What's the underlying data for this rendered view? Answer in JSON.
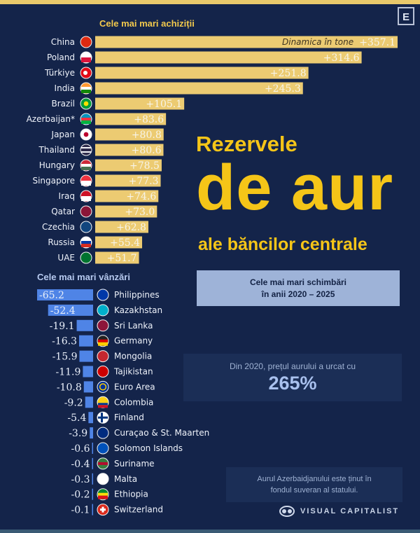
{
  "header": {
    "corner_badge": "E"
  },
  "titles": {
    "line1": "Rezervele",
    "line2": "de aur",
    "line3": "ale băncilor centrale"
  },
  "info_box": {
    "line1": "Cele mai mari schimbări",
    "line2": "în anii 2020 – 2025"
  },
  "price_box": {
    "text": "Din 2020, prețul aurului a urcat cu",
    "value": "265%"
  },
  "footnote": {
    "line1": "Aurul Azerbaidjanului este ținut în",
    "line2": "fondul suveran al statului."
  },
  "brand": {
    "name": "VISUAL CAPITALIST"
  },
  "colors": {
    "background": "#14244a",
    "gold": "#f5c518",
    "buy_bar": "#eccb72",
    "sell_bar": "#4f84e6"
  },
  "chart_data": [
    {
      "type": "bar",
      "orientation": "horizontal",
      "title": "Cele mai mari achiziții",
      "annotation": "Dinamica în tone",
      "unit": "tonnes",
      "categories": [
        "China",
        "Poland",
        "Türkiye",
        "India",
        "Brazil",
        "Azerbaijan*",
        "Japan",
        "Thailand",
        "Hungary",
        "Singapore",
        "Iraq",
        "Qatar",
        "Czechia",
        "Russia",
        "UAE"
      ],
      "values": [
        357.1,
        314.6,
        251.8,
        245.3,
        105.1,
        83.6,
        80.8,
        80.6,
        78.5,
        77.3,
        74.6,
        73.0,
        62.8,
        55.4,
        51.7
      ],
      "labels": [
        "+357.1",
        "+314.6",
        "+251.8",
        "+245.3",
        "+105.1",
        "+83.6",
        "+80.8",
        "+80.6",
        "+78.5",
        "+77.3",
        "+74.6",
        "+73.0",
        "+62.8",
        "+55.4",
        "+51.7"
      ],
      "flag_icons": [
        "cn-flag-icon",
        "pl-flag-icon",
        "tr-flag-icon",
        "in-flag-icon",
        "br-flag-icon",
        "az-flag-icon",
        "jp-flag-icon",
        "th-flag-icon",
        "hu-flag-icon",
        "sg-flag-icon",
        "iq-flag-icon",
        "qa-flag-icon",
        "cz-flag-icon",
        "ru-flag-icon",
        "ae-flag-icon"
      ],
      "xlim": [
        0,
        357.1
      ]
    },
    {
      "type": "bar",
      "orientation": "horizontal",
      "title": "Cele mai mari vânzări",
      "unit": "tonnes",
      "categories": [
        "Philippines",
        "Kazakhstan",
        "Sri Lanka",
        "Germany",
        "Mongolia",
        "Tajikistan",
        "Euro Area",
        "Colombia",
        "Finland",
        "Curaçao & St. Maarten",
        "Solomon Islands",
        "Suriname",
        "Malta",
        "Ethiopia",
        "Switzerland"
      ],
      "values": [
        -65.2,
        -52.4,
        -19.1,
        -16.3,
        -15.9,
        -11.9,
        -10.8,
        -9.2,
        -5.4,
        -3.9,
        -0.6,
        -0.4,
        -0.3,
        -0.2,
        -0.1
      ],
      "labels": [
        "-65.2",
        "-52.4",
        "-19.1",
        "-16.3",
        "-15.9",
        "-11.9",
        "-10.8",
        "-9.2",
        "-5.4",
        "-3.9",
        "-0.6",
        "-0.4",
        "-0.3",
        "-0.2",
        "-0.1"
      ],
      "flag_icons": [
        "ph-flag-icon",
        "kz-flag-icon",
        "lk-flag-icon",
        "de-flag-icon",
        "mn-flag-icon",
        "tj-flag-icon",
        "eu-flag-icon",
        "co-flag-icon",
        "fi-flag-icon",
        "cw-flag-icon",
        "sb-flag-icon",
        "sr-flag-icon",
        "mt-flag-icon",
        "et-flag-icon",
        "ch-flag-icon"
      ],
      "xlim": [
        -65.2,
        0
      ]
    }
  ]
}
